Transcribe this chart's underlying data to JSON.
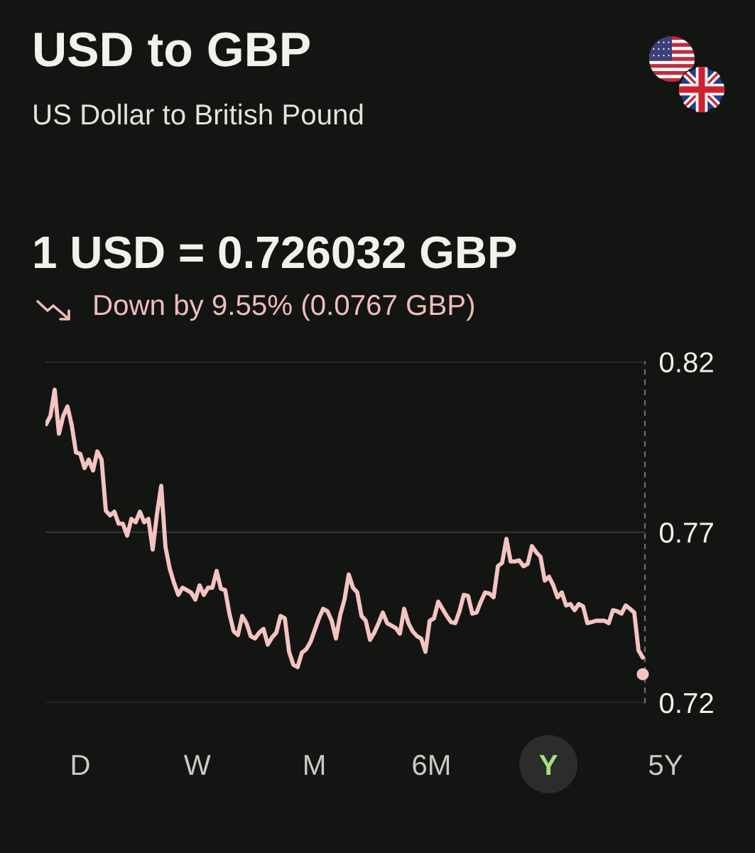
{
  "chart_data": {
    "type": "line",
    "title": "USD to GBP",
    "subtitle": "US Dollar to British Pound",
    "annotations": [
      "1 USD = 0.726032 GBP",
      "Down by 9.55% (0.0767 GBP)",
      "D",
      "W",
      "M",
      "6M",
      "Y",
      "5Y"
    ],
    "categories": [
      null,
      null,
      null,
      null,
      null,
      null,
      null,
      null,
      null,
      null,
      null,
      null,
      null,
      null,
      null,
      null,
      null,
      null,
      null,
      null,
      null,
      null,
      null,
      null,
      null,
      null,
      null,
      null,
      null,
      null,
      null,
      null,
      null,
      null,
      null,
      null,
      null,
      null,
      null,
      null,
      null,
      null,
      null,
      null,
      null,
      null,
      null,
      null,
      null,
      null,
      null,
      null,
      null,
      null,
      null,
      null,
      null,
      null,
      null,
      null,
      null,
      null,
      null,
      null,
      null,
      null,
      null,
      null,
      null,
      null,
      null,
      null,
      null,
      null,
      null,
      null,
      null,
      null,
      null,
      null,
      null,
      null,
      null,
      null,
      null,
      null,
      null,
      null,
      null,
      null,
      null,
      null,
      null,
      null,
      null,
      null,
      null,
      null,
      null,
      null,
      null,
      null,
      null,
      null,
      null,
      null,
      null,
      null,
      null,
      null,
      null,
      null,
      null,
      null,
      null,
      null,
      null,
      null,
      null,
      null,
      null,
      null,
      null,
      null,
      null,
      null,
      null,
      null,
      null,
      null,
      null,
      null,
      null,
      null,
      null,
      null,
      null,
      null,
      null,
      null,
      null
    ],
    "series": [
      {
        "color": "#f5c4c0",
        "values": [
          0.8017,
          0.8041,
          0.8118,
          0.7989,
          0.8041,
          0.8069,
          0.8014,
          0.7934,
          0.793,
          0.7888,
          0.7913,
          0.7881,
          0.7937,
          0.7913,
          0.7763,
          0.7749,
          0.776,
          0.7725,
          0.7725,
          0.769,
          0.7739,
          0.7729,
          0.776,
          0.7729,
          0.7739,
          0.7649,
          0.7753,
          0.7836,
          0.7656,
          0.7593,
          0.7551,
          0.7516,
          0.7537,
          0.753,
          0.7523,
          0.7502,
          0.7544,
          0.7516,
          0.7537,
          0.7537,
          0.7586,
          0.7534,
          0.753,
          0.7461,
          0.7409,
          0.7398,
          0.7454,
          0.7433,
          0.7395,
          0.7388,
          0.7405,
          0.7416,
          0.737,
          0.7391,
          0.7405,
          0.7454,
          0.7447,
          0.7349,
          0.7311,
          0.7304,
          0.7346,
          0.7356,
          0.7377,
          0.7412,
          0.7447,
          0.7475,
          0.7468,
          0.744,
          0.7388,
          0.7457,
          0.7502,
          0.7576,
          0.7537,
          0.7523,
          0.7454,
          0.744,
          0.7384,
          0.7405,
          0.7433,
          0.7464,
          0.7433,
          0.7426,
          0.7419,
          0.7402,
          0.7475,
          0.7433,
          0.7409,
          0.7395,
          0.7388,
          0.7349,
          0.744,
          0.7447,
          0.7496,
          0.7475,
          0.7454,
          0.7436,
          0.7433,
          0.7468,
          0.7516,
          0.7513,
          0.7461,
          0.7464,
          0.7496,
          0.7523,
          0.752,
          0.7509,
          0.76,
          0.761,
          0.768,
          0.7614,
          0.7614,
          0.7617,
          0.76,
          0.7607,
          0.7659,
          0.7641,
          0.7628,
          0.7558,
          0.7569,
          0.7544,
          0.7509,
          0.7523,
          0.7485,
          0.7489,
          0.7471,
          0.7489,
          0.7482,
          0.7433,
          0.7436,
          0.744,
          0.744,
          0.744,
          0.7433,
          0.7471,
          0.7468,
          0.7461,
          0.7485,
          0.7475,
          0.7464,
          0.7353,
          0.7332
        ]
      },
      {
        "type": "scatter",
        "color": "#f5c4c0",
        "values": [
          null,
          null,
          null,
          null,
          null,
          null,
          null,
          null,
          null,
          null,
          null,
          null,
          null,
          null,
          null,
          null,
          null,
          null,
          null,
          null,
          null,
          null,
          null,
          null,
          null,
          null,
          null,
          null,
          null,
          null,
          null,
          null,
          null,
          null,
          null,
          null,
          null,
          null,
          null,
          null,
          null,
          null,
          null,
          null,
          null,
          null,
          null,
          null,
          null,
          null,
          null,
          null,
          null,
          null,
          null,
          null,
          null,
          null,
          null,
          null,
          null,
          null,
          null,
          null,
          null,
          null,
          null,
          null,
          null,
          null,
          null,
          null,
          null,
          null,
          null,
          null,
          null,
          null,
          null,
          null,
          null,
          null,
          null,
          null,
          null,
          null,
          null,
          null,
          null,
          null,
          null,
          null,
          null,
          null,
          null,
          null,
          null,
          null,
          null,
          null,
          null,
          null,
          null,
          null,
          null,
          null,
          null,
          null,
          null,
          null,
          null,
          null,
          null,
          null,
          null,
          null,
          null,
          null,
          null,
          null,
          null,
          null,
          null,
          null,
          null,
          null,
          null,
          null,
          null,
          null,
          null,
          null,
          null,
          null,
          null,
          null,
          null,
          null,
          null,
          null,
          0.7283
        ]
      }
    ],
    "ylim": [
      0.72,
      0.82
    ],
    "yticks": [
      0.72,
      0.77,
      0.82
    ],
    "grid": "y",
    "tick_labels": "y"
  }
}
